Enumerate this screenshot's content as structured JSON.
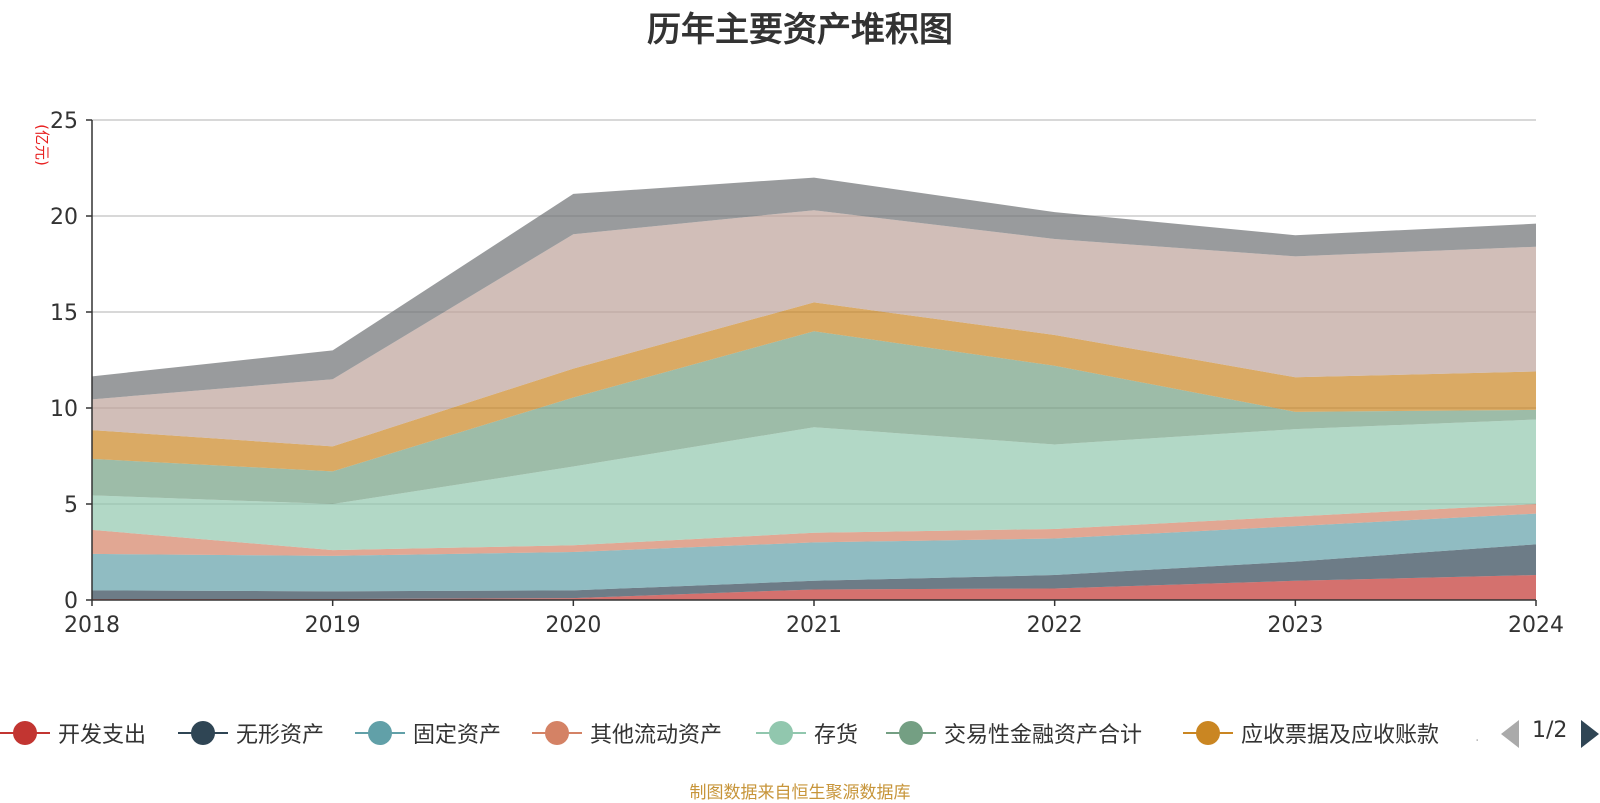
{
  "title": "历年主要资产堆积图",
  "source_note": "制图数据来自恒生聚源数据库",
  "legend": {
    "items": [
      {
        "label": "开发支出",
        "color": "#c23531"
      },
      {
        "label": "无形资产",
        "color": "#2f4554"
      },
      {
        "label": "固定资产",
        "color": "#61a0a8"
      },
      {
        "label": "其他流动资产",
        "color": "#d48265"
      },
      {
        "label": "存货",
        "color": "#91c7ae"
      },
      {
        "label": "交易性金融资产合计",
        "color": "#749f83"
      },
      {
        "label": "应收票据及应收账款",
        "color": "#ca8622"
      }
    ],
    "page_text": "1/2"
  },
  "chart_data": {
    "type": "area",
    "stacked": true,
    "title": "历年主要资产堆积图",
    "ylabel": "(亿元)",
    "xlabel": "",
    "ylim": [
      0,
      25
    ],
    "yticks": [
      0,
      5,
      10,
      15,
      20,
      25
    ],
    "grid": true,
    "legend_position": "bottom",
    "categories": [
      "2018",
      "2019",
      "2020",
      "2021",
      "2022",
      "2023",
      "2024"
    ],
    "series": [
      {
        "name": "开发支出",
        "color": "#c23531",
        "values": [
          0.05,
          0.05,
          0.1,
          0.55,
          0.6,
          1.0,
          1.3
        ]
      },
      {
        "name": "无形资产",
        "color": "#2f4554",
        "values": [
          0.45,
          0.4,
          0.4,
          0.45,
          0.7,
          1.0,
          1.6
        ]
      },
      {
        "name": "固定资产",
        "color": "#61a0a8",
        "values": [
          1.9,
          1.85,
          2.0,
          2.0,
          1.9,
          1.85,
          1.6
        ]
      },
      {
        "name": "其他流动资产",
        "color": "#d48265",
        "values": [
          1.25,
          0.3,
          0.35,
          0.5,
          0.5,
          0.5,
          0.5
        ]
      },
      {
        "name": "存货",
        "color": "#91c7ae",
        "values": [
          1.8,
          2.4,
          4.1,
          5.5,
          4.4,
          4.55,
          4.4
        ]
      },
      {
        "name": "交易性金融资产合计",
        "color": "#749f83",
        "values": [
          1.9,
          1.7,
          3.6,
          5.0,
          4.1,
          0.9,
          0.5
        ]
      },
      {
        "name": "应收票据及应收账款",
        "color": "#ca8622",
        "values": [
          1.5,
          1.3,
          1.5,
          1.5,
          1.6,
          1.8,
          2.0
        ]
      },
      {
        "name": "",
        "color": "#bda29a",
        "values": [
          1.6,
          3.5,
          7.0,
          4.8,
          5.0,
          6.3,
          6.5
        ]
      },
      {
        "name": "",
        "color": "#6e7074",
        "values": [
          1.2,
          1.5,
          2.1,
          1.7,
          1.4,
          1.1,
          1.2
        ]
      }
    ]
  }
}
